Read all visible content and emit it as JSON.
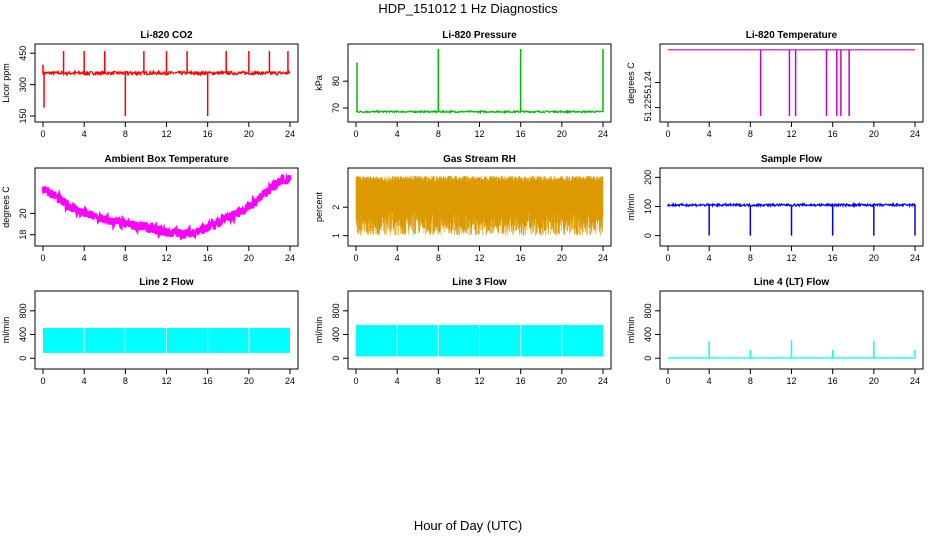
{
  "page": {
    "title": "HDP_151012  1 Hz Diagnostics",
    "xlabel": "Hour of Day (UTC)"
  },
  "chart_data": [
    {
      "type": "line",
      "title": "Li-820 CO2",
      "ylabel": "Licor ppm",
      "color": "#ff0000",
      "xlim": [
        0,
        24
      ],
      "ylim": [
        150,
        470
      ],
      "xticks": [
        0,
        4,
        8,
        12,
        16,
        20,
        24
      ],
      "yticks": [
        150,
        300,
        450
      ],
      "series": [
        {
          "baseline": 355,
          "noise": 8,
          "spikes": [
            [
              0.0,
              395
            ],
            [
              0.1,
              190
            ],
            [
              2.0,
              460
            ],
            [
              4.0,
              460
            ],
            [
              6.0,
              460
            ],
            [
              8.0,
              150
            ],
            [
              9.8,
              460
            ],
            [
              12.0,
              460
            ],
            [
              14.0,
              460
            ],
            [
              16.0,
              150
            ],
            [
              17.8,
              460
            ],
            [
              20.0,
              460
            ],
            [
              22.0,
              460
            ],
            [
              23.8,
              460
            ]
          ]
        }
      ]
    },
    {
      "type": "line",
      "title": "Li-820 Pressure",
      "ylabel": "kPa",
      "color": "#00bb00",
      "xlim": [
        0,
        24
      ],
      "ylim": [
        67,
        92
      ],
      "xticks": [
        0,
        4,
        8,
        12,
        16,
        20,
        24
      ],
      "yticks": [
        70,
        80
      ],
      "series": [
        {
          "baseline": 68.6,
          "noise": 0.3,
          "spikes": [
            [
              0.1,
              87
            ],
            [
              8.0,
              92
            ],
            [
              16.0,
              92
            ],
            [
              24.0,
              92
            ]
          ]
        }
      ]
    },
    {
      "type": "line",
      "title": "Li-820 Temperature",
      "ylabel": "degrees C",
      "color": "#cc00cc",
      "xlim": [
        0,
        24
      ],
      "ylim": [
        51.22,
        51.26
      ],
      "xticks": [
        0,
        4,
        8,
        12,
        16,
        20,
        24
      ],
      "yticks": [
        51.225,
        51.24
      ],
      "series": [
        {
          "baseline": 51.2595,
          "noise": 0,
          "spikes": [
            [
              9.0,
              51.22
            ],
            [
              11.8,
              51.22
            ],
            [
              12.4,
              51.22
            ],
            [
              15.4,
              51.22
            ],
            [
              16.4,
              51.22
            ],
            [
              16.8,
              51.22
            ],
            [
              17.6,
              51.22
            ]
          ]
        }
      ]
    },
    {
      "type": "line",
      "title": "Ambient Box Temperature",
      "ylabel": "degrees C",
      "color": "#ff00ff",
      "xlim": [
        0,
        24
      ],
      "ylim": [
        17.5,
        23.8
      ],
      "xticks": [
        0,
        4,
        8,
        12,
        16,
        20,
        24
      ],
      "yticks": [
        18,
        20
      ],
      "series": [
        {
          "noise": 0.45,
          "curve": [
            [
              0,
              22.5
            ],
            [
              2,
              21.0
            ],
            [
              4,
              20.0
            ],
            [
              6,
              19.4
            ],
            [
              8,
              19.0
            ],
            [
              10,
              18.7
            ],
            [
              12,
              18.2
            ],
            [
              14,
              18.1
            ],
            [
              16,
              18.6
            ],
            [
              18,
              19.6
            ],
            [
              20,
              20.6
            ],
            [
              22,
              22.2
            ],
            [
              23,
              23.2
            ],
            [
              24,
              23.2
            ]
          ]
        }
      ]
    },
    {
      "type": "line",
      "title": "Gas Stream RH",
      "ylabel": "percent",
      "color": "#dd9900",
      "xlim": [
        0,
        24
      ],
      "ylim": [
        0.85,
        3.2
      ],
      "xticks": [
        0,
        4,
        8,
        12,
        16,
        20,
        24
      ],
      "yticks": [
        1.0,
        2.0
      ],
      "series": [
        {
          "band": [
            1.0,
            3.1
          ]
        }
      ]
    },
    {
      "type": "line",
      "title": "Sample Flow",
      "ylabel": "ml/min",
      "color": "#0000ff",
      "xlim": [
        0,
        24
      ],
      "ylim": [
        -15,
        215
      ],
      "xticks": [
        0,
        4,
        8,
        12,
        16,
        20,
        24
      ],
      "yticks": [
        0,
        100,
        200
      ],
      "series": [
        {
          "baseline": 105,
          "noise": 4,
          "spikes": [
            [
              0.0,
              100
            ],
            [
              4.0,
              0
            ],
            [
              8.0,
              0
            ],
            [
              12.0,
              0
            ],
            [
              16.0,
              0
            ],
            [
              20.0,
              0
            ],
            [
              24.0,
              0
            ]
          ]
        }
      ]
    },
    {
      "type": "line",
      "title": "Line 2 Flow",
      "ylabel": "ml/min",
      "color": "#00ffff",
      "xlim": [
        0,
        24
      ],
      "ylim": [
        -80,
        1050
      ],
      "xticks": [
        0,
        4,
        8,
        12,
        16,
        20,
        24
      ],
      "yticks": [
        0,
        400,
        800
      ],
      "series": [
        {
          "band": [
            90,
            510
          ],
          "xrange": [
            0,
            24
          ],
          "gaps": [
            4,
            8,
            12,
            16,
            20
          ]
        }
      ]
    },
    {
      "type": "line",
      "title": "Line 3 Flow",
      "ylabel": "ml/min",
      "color": "#00ffff",
      "xlim": [
        0,
        24
      ],
      "ylim": [
        -80,
        1050
      ],
      "xticks": [
        0,
        4,
        8,
        12,
        16,
        20,
        24
      ],
      "yticks": [
        0,
        400,
        800
      ],
      "series": [
        {
          "band": [
            30,
            560
          ],
          "xrange": [
            0,
            24
          ],
          "gaps": [
            4,
            8,
            12,
            16,
            20
          ]
        }
      ]
    },
    {
      "type": "line",
      "title": "Line 4 (LT) Flow",
      "ylabel": "ml/min",
      "color": "#00ffff",
      "xlim": [
        0,
        24
      ],
      "ylim": [
        -80,
        1050
      ],
      "xticks": [
        0,
        4,
        8,
        12,
        16,
        20,
        24
      ],
      "yticks": [
        0,
        400,
        800
      ],
      "series": [
        {
          "baseline": 5,
          "noise": 2,
          "spikes": [
            [
              4.0,
              290
            ],
            [
              8.0,
              140
            ],
            [
              12.0,
              300
            ],
            [
              16.0,
              140
            ],
            [
              20.0,
              290
            ],
            [
              24.0,
              140
            ]
          ]
        }
      ]
    }
  ]
}
